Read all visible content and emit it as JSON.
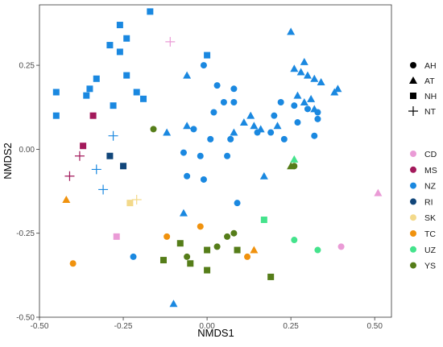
{
  "chart_data": {
    "type": "scatter",
    "title": "",
    "xlabel": "NMDS1",
    "ylabel": "NMDS2",
    "xlim": [
      -0.5,
      0.55
    ],
    "ylim": [
      -0.5,
      0.43
    ],
    "xticks": [
      -0.5,
      -0.25,
      0,
      0.25,
      0.5
    ],
    "xtick_labels": [
      "-0.50",
      "-0.25",
      "0.00",
      "0.25",
      "0.50"
    ],
    "yticks": [
      -0.5,
      -0.25,
      0,
      0.25
    ],
    "ytick_labels": [
      "-0.50",
      "-0.25",
      "0.00",
      "0.25"
    ],
    "grid": false,
    "legend_position": "right",
    "shape_legend": [
      {
        "key": "AH",
        "label": "AH",
        "shape": "circle"
      },
      {
        "key": "AT",
        "label": "AT",
        "shape": "triangle"
      },
      {
        "key": "NH",
        "label": "NH",
        "shape": "square"
      },
      {
        "key": "NT",
        "label": "NT",
        "shape": "plus"
      }
    ],
    "color_legend": [
      {
        "key": "CD",
        "label": "CD",
        "color": "#ea9bd6"
      },
      {
        "key": "MS",
        "label": "MS",
        "color": "#a3195b"
      },
      {
        "key": "NZ",
        "label": "NZ",
        "color": "#1a88e0"
      },
      {
        "key": "RI",
        "label": "RI",
        "color": "#11467a"
      },
      {
        "key": "SK",
        "label": "SK",
        "color": "#f3d98a"
      },
      {
        "key": "TC",
        "label": "TC",
        "color": "#f0920e"
      },
      {
        "key": "UZ",
        "label": "UZ",
        "color": "#44e38c"
      },
      {
        "key": "YS",
        "label": "YS",
        "color": "#557d19"
      }
    ],
    "points": [
      {
        "x": -0.17,
        "y": 0.41,
        "shape": "NH",
        "group": "NZ"
      },
      {
        "x": -0.26,
        "y": 0.37,
        "shape": "NH",
        "group": "NZ"
      },
      {
        "x": -0.24,
        "y": 0.33,
        "shape": "NH",
        "group": "NZ"
      },
      {
        "x": -0.29,
        "y": 0.31,
        "shape": "NH",
        "group": "NZ"
      },
      {
        "x": -0.26,
        "y": 0.29,
        "shape": "NH",
        "group": "NZ"
      },
      {
        "x": 0.0,
        "y": 0.28,
        "shape": "NH",
        "group": "NZ"
      },
      {
        "x": -0.33,
        "y": 0.21,
        "shape": "NH",
        "group": "NZ"
      },
      {
        "x": -0.24,
        "y": 0.22,
        "shape": "NH",
        "group": "NZ"
      },
      {
        "x": -0.45,
        "y": 0.17,
        "shape": "NH",
        "group": "NZ"
      },
      {
        "x": -0.35,
        "y": 0.18,
        "shape": "NH",
        "group": "NZ"
      },
      {
        "x": -0.36,
        "y": 0.16,
        "shape": "NH",
        "group": "NZ"
      },
      {
        "x": -0.21,
        "y": 0.17,
        "shape": "NH",
        "group": "NZ"
      },
      {
        "x": -0.28,
        "y": 0.13,
        "shape": "NH",
        "group": "NZ"
      },
      {
        "x": -0.45,
        "y": 0.1,
        "shape": "NH",
        "group": "NZ"
      },
      {
        "x": -0.19,
        "y": 0.15,
        "shape": "NH",
        "group": "NZ"
      },
      {
        "x": -0.34,
        "y": 0.1,
        "shape": "NH",
        "group": "MS"
      },
      {
        "x": -0.37,
        "y": 0.01,
        "shape": "NH",
        "group": "MS"
      },
      {
        "x": -0.29,
        "y": -0.02,
        "shape": "NH",
        "group": "RI"
      },
      {
        "x": -0.25,
        "y": -0.05,
        "shape": "NH",
        "group": "RI"
      },
      {
        "x": -0.23,
        "y": -0.16,
        "shape": "NH",
        "group": "SK"
      },
      {
        "x": -0.27,
        "y": -0.26,
        "shape": "NH",
        "group": "CD"
      },
      {
        "x": 0.17,
        "y": -0.21,
        "shape": "NH",
        "group": "UZ"
      },
      {
        "x": -0.08,
        "y": -0.28,
        "shape": "NH",
        "group": "YS"
      },
      {
        "x": 0.0,
        "y": -0.3,
        "shape": "NH",
        "group": "YS"
      },
      {
        "x": 0.09,
        "y": -0.3,
        "shape": "NH",
        "group": "YS"
      },
      {
        "x": -0.13,
        "y": -0.33,
        "shape": "NH",
        "group": "YS"
      },
      {
        "x": -0.05,
        "y": -0.34,
        "shape": "NH",
        "group": "YS"
      },
      {
        "x": 0.0,
        "y": -0.36,
        "shape": "NH",
        "group": "YS"
      },
      {
        "x": 0.19,
        "y": -0.38,
        "shape": "NH",
        "group": "YS"
      },
      {
        "x": -0.11,
        "y": 0.32,
        "shape": "NT",
        "group": "CD"
      },
      {
        "x": -0.38,
        "y": -0.02,
        "shape": "NT",
        "group": "MS"
      },
      {
        "x": -0.41,
        "y": -0.08,
        "shape": "NT",
        "group": "MS"
      },
      {
        "x": -0.28,
        "y": 0.04,
        "shape": "NT",
        "group": "NZ"
      },
      {
        "x": -0.33,
        "y": -0.06,
        "shape": "NT",
        "group": "NZ"
      },
      {
        "x": -0.31,
        "y": -0.12,
        "shape": "NT",
        "group": "NZ"
      },
      {
        "x": -0.21,
        "y": -0.15,
        "shape": "NT",
        "group": "SK"
      },
      {
        "x": 0.25,
        "y": 0.35,
        "shape": "AT",
        "group": "NZ"
      },
      {
        "x": 0.26,
        "y": 0.24,
        "shape": "AT",
        "group": "NZ"
      },
      {
        "x": 0.28,
        "y": 0.23,
        "shape": "AT",
        "group": "NZ"
      },
      {
        "x": 0.29,
        "y": 0.26,
        "shape": "AT",
        "group": "NZ"
      },
      {
        "x": 0.3,
        "y": 0.22,
        "shape": "AT",
        "group": "NZ"
      },
      {
        "x": 0.32,
        "y": 0.21,
        "shape": "AT",
        "group": "NZ"
      },
      {
        "x": 0.34,
        "y": 0.2,
        "shape": "AT",
        "group": "NZ"
      },
      {
        "x": 0.38,
        "y": 0.17,
        "shape": "AT",
        "group": "NZ"
      },
      {
        "x": 0.39,
        "y": 0.18,
        "shape": "AT",
        "group": "NZ"
      },
      {
        "x": -0.06,
        "y": 0.22,
        "shape": "AT",
        "group": "NZ"
      },
      {
        "x": 0.27,
        "y": 0.16,
        "shape": "AT",
        "group": "NZ"
      },
      {
        "x": 0.29,
        "y": 0.14,
        "shape": "AT",
        "group": "NZ"
      },
      {
        "x": 0.32,
        "y": 0.12,
        "shape": "AT",
        "group": "NZ"
      },
      {
        "x": 0.31,
        "y": 0.15,
        "shape": "AT",
        "group": "NZ"
      },
      {
        "x": -0.12,
        "y": 0.05,
        "shape": "AT",
        "group": "NZ"
      },
      {
        "x": -0.06,
        "y": 0.07,
        "shape": "AT",
        "group": "NZ"
      },
      {
        "x": 0.13,
        "y": 0.1,
        "shape": "AT",
        "group": "NZ"
      },
      {
        "x": 0.11,
        "y": 0.08,
        "shape": "AT",
        "group": "NZ"
      },
      {
        "x": 0.14,
        "y": 0.07,
        "shape": "AT",
        "group": "NZ"
      },
      {
        "x": 0.16,
        "y": 0.06,
        "shape": "AT",
        "group": "NZ"
      },
      {
        "x": 0.21,
        "y": 0.07,
        "shape": "AT",
        "group": "NZ"
      },
      {
        "x": 0.08,
        "y": 0.05,
        "shape": "AT",
        "group": "NZ"
      },
      {
        "x": 0.17,
        "y": -0.08,
        "shape": "AT",
        "group": "NZ"
      },
      {
        "x": -0.07,
        "y": -0.19,
        "shape": "AT",
        "group": "NZ"
      },
      {
        "x": -0.1,
        "y": -0.46,
        "shape": "AT",
        "group": "NZ"
      },
      {
        "x": -0.42,
        "y": -0.15,
        "shape": "AT",
        "group": "TC"
      },
      {
        "x": 0.14,
        "y": -0.3,
        "shape": "AT",
        "group": "TC"
      },
      {
        "x": 0.26,
        "y": -0.03,
        "shape": "AT",
        "group": "UZ"
      },
      {
        "x": 0.25,
        "y": -0.05,
        "shape": "AT",
        "group": "YS"
      },
      {
        "x": 0.51,
        "y": -0.13,
        "shape": "AT",
        "group": "CD"
      },
      {
        "x": -0.01,
        "y": 0.25,
        "shape": "AH",
        "group": "NZ"
      },
      {
        "x": 0.03,
        "y": 0.19,
        "shape": "AH",
        "group": "NZ"
      },
      {
        "x": 0.08,
        "y": 0.18,
        "shape": "AH",
        "group": "NZ"
      },
      {
        "x": 0.05,
        "y": 0.14,
        "shape": "AH",
        "group": "NZ"
      },
      {
        "x": 0.08,
        "y": 0.14,
        "shape": "AH",
        "group": "NZ"
      },
      {
        "x": 0.22,
        "y": 0.14,
        "shape": "AH",
        "group": "NZ"
      },
      {
        "x": 0.26,
        "y": 0.13,
        "shape": "AH",
        "group": "NZ"
      },
      {
        "x": 0.3,
        "y": 0.12,
        "shape": "AH",
        "group": "NZ"
      },
      {
        "x": 0.02,
        "y": 0.11,
        "shape": "AH",
        "group": "NZ"
      },
      {
        "x": 0.33,
        "y": 0.11,
        "shape": "AH",
        "group": "NZ"
      },
      {
        "x": 0.2,
        "y": 0.1,
        "shape": "AH",
        "group": "NZ"
      },
      {
        "x": 0.27,
        "y": 0.08,
        "shape": "AH",
        "group": "NZ"
      },
      {
        "x": 0.33,
        "y": 0.09,
        "shape": "AH",
        "group": "NZ"
      },
      {
        "x": -0.04,
        "y": 0.06,
        "shape": "AH",
        "group": "NZ"
      },
      {
        "x": 0.01,
        "y": 0.03,
        "shape": "AH",
        "group": "NZ"
      },
      {
        "x": 0.07,
        "y": 0.03,
        "shape": "AH",
        "group": "NZ"
      },
      {
        "x": 0.15,
        "y": 0.05,
        "shape": "AH",
        "group": "NZ"
      },
      {
        "x": 0.19,
        "y": 0.05,
        "shape": "AH",
        "group": "NZ"
      },
      {
        "x": 0.23,
        "y": 0.03,
        "shape": "AH",
        "group": "NZ"
      },
      {
        "x": 0.32,
        "y": 0.04,
        "shape": "AH",
        "group": "NZ"
      },
      {
        "x": -0.07,
        "y": -0.01,
        "shape": "AH",
        "group": "NZ"
      },
      {
        "x": -0.02,
        "y": -0.02,
        "shape": "AH",
        "group": "NZ"
      },
      {
        "x": 0.06,
        "y": -0.02,
        "shape": "AH",
        "group": "NZ"
      },
      {
        "x": -0.06,
        "y": -0.08,
        "shape": "AH",
        "group": "NZ"
      },
      {
        "x": -0.01,
        "y": -0.09,
        "shape": "AH",
        "group": "NZ"
      },
      {
        "x": 0.09,
        "y": -0.16,
        "shape": "AH",
        "group": "NZ"
      },
      {
        "x": -0.22,
        "y": -0.32,
        "shape": "AH",
        "group": "NZ"
      },
      {
        "x": -0.16,
        "y": 0.06,
        "shape": "AH",
        "group": "YS"
      },
      {
        "x": -0.06,
        "y": -0.32,
        "shape": "AH",
        "group": "YS"
      },
      {
        "x": 0.06,
        "y": -0.26,
        "shape": "AH",
        "group": "YS"
      },
      {
        "x": 0.08,
        "y": -0.25,
        "shape": "AH",
        "group": "YS"
      },
      {
        "x": 0.03,
        "y": -0.29,
        "shape": "AH",
        "group": "YS"
      },
      {
        "x": 0.26,
        "y": -0.05,
        "shape": "AH",
        "group": "YS"
      },
      {
        "x": -0.12,
        "y": -0.26,
        "shape": "AH",
        "group": "TC"
      },
      {
        "x": -0.02,
        "y": -0.23,
        "shape": "AH",
        "group": "TC"
      },
      {
        "x": 0.12,
        "y": -0.32,
        "shape": "AH",
        "group": "TC"
      },
      {
        "x": -0.4,
        "y": -0.34,
        "shape": "AH",
        "group": "TC"
      },
      {
        "x": 0.26,
        "y": -0.27,
        "shape": "AH",
        "group": "UZ"
      },
      {
        "x": 0.33,
        "y": -0.3,
        "shape": "AH",
        "group": "UZ"
      },
      {
        "x": 0.4,
        "y": -0.29,
        "shape": "AH",
        "group": "CD"
      }
    ]
  }
}
